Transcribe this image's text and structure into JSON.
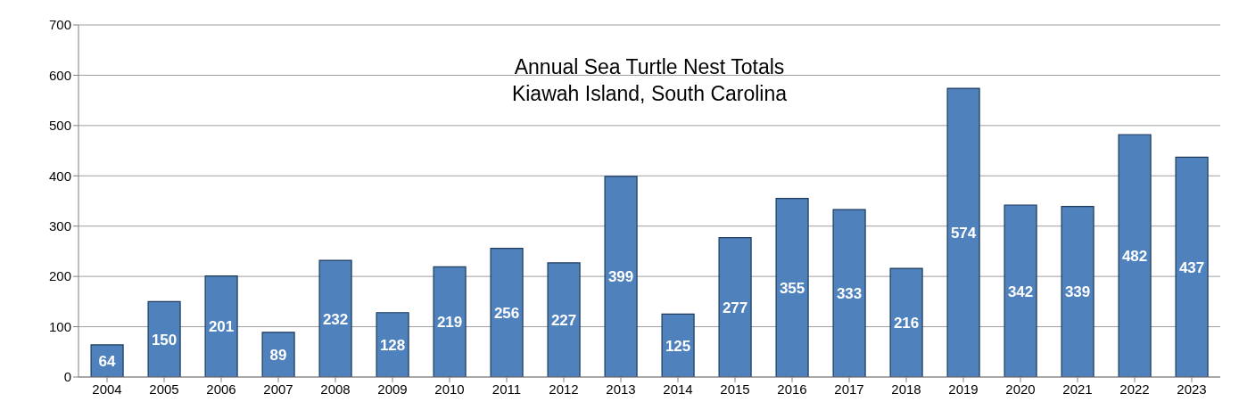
{
  "chart_data": {
    "type": "bar",
    "title": "Annual Sea Turtle Nest Totals",
    "subtitle": "Kiawah Island, South Carolina",
    "categories": [
      "2004",
      "2005",
      "2006",
      "2007",
      "2008",
      "2009",
      "2010",
      "2011",
      "2012",
      "2013",
      "2014",
      "2015",
      "2016",
      "2017",
      "2018",
      "2019",
      "2020",
      "2021",
      "2022",
      "2023"
    ],
    "values": [
      64,
      150,
      201,
      89,
      232,
      128,
      219,
      256,
      227,
      399,
      125,
      277,
      355,
      333,
      216,
      574,
      342,
      339,
      482,
      437
    ],
    "color": "#4f81bd",
    "ylim": [
      0,
      700
    ],
    "yticks": [
      0,
      100,
      200,
      300,
      400,
      500,
      600,
      700
    ],
    "grid": "y",
    "data_labels": true,
    "legend": false
  }
}
